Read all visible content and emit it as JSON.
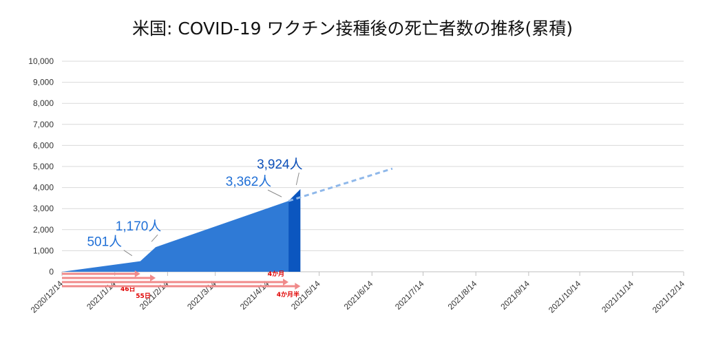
{
  "chart_data": {
    "type": "area",
    "title": "米国: COVID-19 ワクチン接種後の死亡者数の推移(累積)",
    "xlabel": "",
    "ylabel": "",
    "ylim": [
      0,
      10000
    ],
    "grid": true,
    "legend": "none",
    "y_ticks": [
      0,
      1000,
      2000,
      3000,
      4000,
      5000,
      6000,
      7000,
      8000,
      9000,
      10000
    ],
    "y_tick_labels": [
      "0",
      "1,000",
      "2,000",
      "3,000",
      "4,000",
      "5,000",
      "6,000",
      "7,000",
      "8,000",
      "9,000",
      "10,000"
    ],
    "x_ticks": [
      "2020-12-14",
      "2021-01-14",
      "2021-02-14",
      "2021-03-14",
      "2021-04-14",
      "2021-05-14",
      "2021-06-14",
      "2021-07-14",
      "2021-08-14",
      "2021-09-14",
      "2021-10-14",
      "2021-11-14",
      "2021-12-14"
    ],
    "x_tick_labels": [
      "2020/12/14",
      "2021/1/14",
      "2021/2/14",
      "2021/3/14",
      "2021/4/14",
      "2021/5/14",
      "2021/6/14",
      "2021/7/14",
      "2021/8/14",
      "2021/9/14",
      "2021/10/14",
      "2021/11/14",
      "2021/12/14"
    ],
    "series": [
      {
        "color": "#2f7ad6",
        "points": [
          {
            "x": "2020-12-14",
            "y": 0
          },
          {
            "x": "2021-01-29",
            "y": 501
          },
          {
            "x": "2021-02-07",
            "y": 1170
          },
          {
            "x": "2021-04-26",
            "y": 3362
          }
        ]
      },
      {
        "color": "#0b56bf",
        "points": [
          {
            "x": "2021-04-26",
            "y": 3362
          },
          {
            "x": "2021-05-03",
            "y": 3924
          }
        ]
      },
      {
        "style": "dashed",
        "color": "#8fb8ea",
        "points": [
          {
            "x": "2021-04-26",
            "y": 3362
          },
          {
            "x": "2021-06-26",
            "y": 4900
          }
        ]
      }
    ],
    "annotations": [
      {
        "text": "501人",
        "x": "2021-01-29",
        "y": 501
      },
      {
        "text": "1,170人",
        "x": "2021-02-07",
        "y": 1170
      },
      {
        "text": "3,362人",
        "x": "2021-04-26",
        "y": 3362
      },
      {
        "text": "3,924人",
        "x": "2021-05-03",
        "y": 3924
      }
    ],
    "arrows": [
      {
        "label": "46日",
        "from": "2020-12-14",
        "to": "2021-01-29"
      },
      {
        "label": "55日",
        "from": "2020-12-14",
        "to": "2021-02-07"
      },
      {
        "label": "4か月",
        "from": "2020-12-14",
        "to": "2021-04-26"
      },
      {
        "label": "4か月半",
        "from": "2020-12-14",
        "to": "2021-05-03"
      }
    ]
  }
}
